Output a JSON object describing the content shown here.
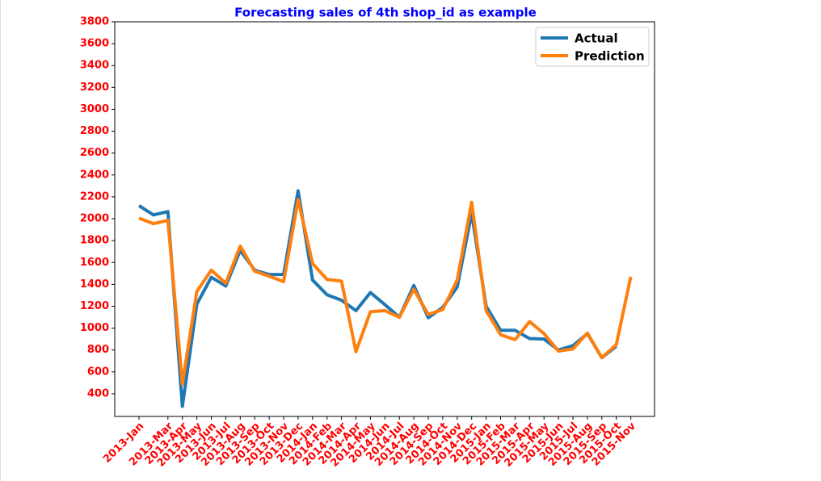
{
  "chart_data": {
    "type": "line",
    "title": "Forecasting sales of 4th shop_id as example",
    "categories": [
      "2013-Jan",
      null,
      "2013-Mar",
      "2013-Apr",
      "2013-May",
      "2013-Jun",
      "2013-Jul",
      "2013-Aug",
      "2013-Sep",
      "2013-Oct",
      "2013-Nov",
      "2013-Dec",
      "2014-Jan",
      "2014-Feb",
      "2014-Mar",
      "2014-Apr",
      "2014-May",
      "2014-Jun",
      "2014-Jul",
      "2014-Aug",
      "2014-Sep",
      "2014-Oct",
      "2014-Nov",
      "2014-Dec",
      "2015-Jan",
      "2015-Feb",
      "2015-Mar",
      "2015-Apr",
      "2015-May",
      "2015-Jun",
      "2015-Jul",
      "2015-Aug",
      "2015-Sep",
      "2015-Oct",
      "2015-Nov"
    ],
    "series": [
      {
        "name": "Actual",
        "color": "#1f77b4",
        "values": [
          2120,
          2035,
          2065,
          285,
          1220,
          1465,
          1385,
          1710,
          1530,
          1490,
          1490,
          2255,
          1440,
          1305,
          1255,
          1160,
          1325,
          1215,
          1100,
          1390,
          1095,
          1190,
          1375,
          2050,
          1200,
          980,
          980,
          905,
          900,
          800,
          840,
          950,
          730,
          835,
          null
        ]
      },
      {
        "name": "Prediction",
        "color": "#ff7f0e",
        "values": [
          2005,
          1955,
          1985,
          490,
          1335,
          1530,
          1410,
          1750,
          1520,
          1475,
          1425,
          2175,
          1590,
          1445,
          1430,
          785,
          1150,
          1160,
          1100,
          1355,
          1125,
          1170,
          1440,
          2150,
          1160,
          940,
          895,
          1060,
          950,
          790,
          810,
          955,
          730,
          850,
          1470
        ]
      }
    ],
    "ylim": [
      193,
      3800
    ],
    "yticks": [
      400,
      600,
      800,
      1000,
      1200,
      1400,
      1600,
      1800,
      2000,
      2200,
      2400,
      2600,
      2800,
      3000,
      3200,
      3400,
      3600,
      3800
    ],
    "legend": "upper right"
  }
}
